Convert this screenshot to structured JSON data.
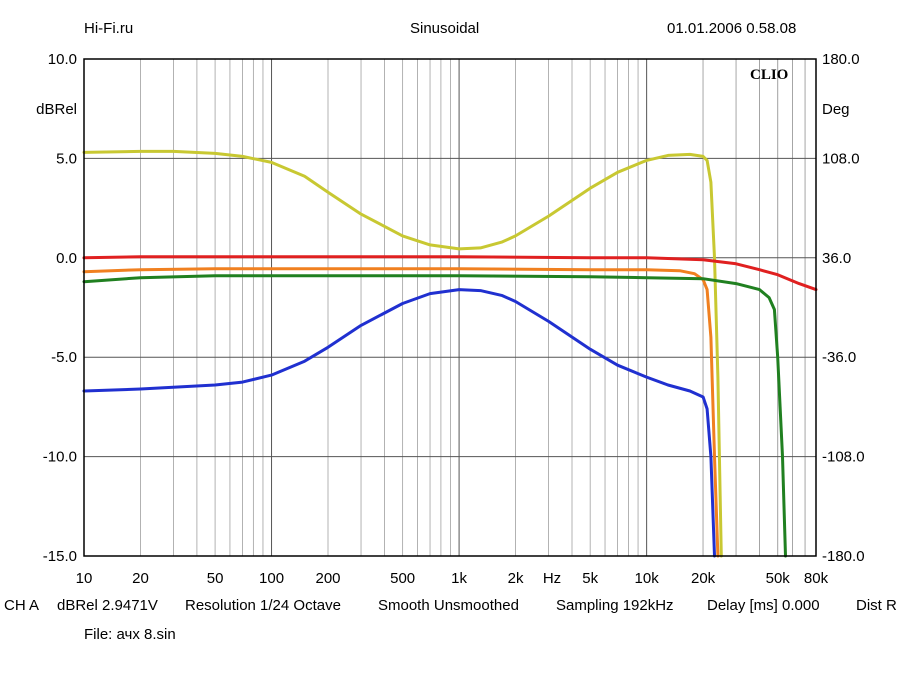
{
  "header": {
    "left": "Hi-Fi.ru",
    "center": "Sinusoidal",
    "right": "01.01.2006 0.58.08"
  },
  "status_bar": {
    "items": [
      "CH A",
      "dBRel 2.9471V",
      "Resolution 1/24 Octave",
      "Smooth Unsmoothed",
      "Sampling 192kHz",
      "Delay [ms] 0.000",
      "Dist R"
    ]
  },
  "file_label": "File: ачх 8.sin",
  "chart_data": {
    "type": "line",
    "logo": "CLIO",
    "xscale": "log",
    "xlim": [
      10,
      80000
    ],
    "ylim": [
      -15,
      10
    ],
    "y2lim": [
      -180,
      180
    ],
    "ylabel": "dBRel",
    "y2label": "Deg",
    "xunit": "Hz",
    "grid": true,
    "x_ticks": [
      {
        "v": 10,
        "label": "10"
      },
      {
        "v": 20,
        "label": "20"
      },
      {
        "v": 50,
        "label": "50"
      },
      {
        "v": 100,
        "label": "100"
      },
      {
        "v": 200,
        "label": "200"
      },
      {
        "v": 500,
        "label": "500"
      },
      {
        "v": 1000,
        "label": "1k"
      },
      {
        "v": 2000,
        "label": "2k"
      },
      {
        "v": 5000,
        "label": "5k"
      },
      {
        "v": 10000,
        "label": "10k"
      },
      {
        "v": 20000,
        "label": "20k"
      },
      {
        "v": 50000,
        "label": "50k"
      },
      {
        "v": 80000,
        "label": "80k"
      }
    ],
    "y_ticks": [
      {
        "v": 10,
        "label": "10.0"
      },
      {
        "v": 5,
        "label": "5.0"
      },
      {
        "v": 0,
        "label": "0.0"
      },
      {
        "v": -5,
        "label": "-5.0"
      },
      {
        "v": -10,
        "label": "-10.0"
      },
      {
        "v": -15,
        "label": "-15.0"
      }
    ],
    "y2_ticks": [
      {
        "v": 180,
        "label": "180.0"
      },
      {
        "v": 108,
        "label": "108.0"
      },
      {
        "v": 36,
        "label": "36.0"
      },
      {
        "v": -36,
        "label": "-36.0"
      },
      {
        "v": -108,
        "label": "-108.0"
      },
      {
        "v": -180,
        "label": "-180.0"
      }
    ],
    "series": [
      {
        "color": "#c8c832",
        "points": [
          [
            10,
            5.3
          ],
          [
            20,
            5.35
          ],
          [
            30,
            5.35
          ],
          [
            50,
            5.25
          ],
          [
            70,
            5.1
          ],
          [
            100,
            4.8
          ],
          [
            150,
            4.1
          ],
          [
            200,
            3.3
          ],
          [
            300,
            2.2
          ],
          [
            500,
            1.1
          ],
          [
            700,
            0.65
          ],
          [
            1000,
            0.45
          ],
          [
            1300,
            0.5
          ],
          [
            1700,
            0.8
          ],
          [
            2000,
            1.1
          ],
          [
            3000,
            2.1
          ],
          [
            5000,
            3.5
          ],
          [
            7000,
            4.3
          ],
          [
            10000,
            4.9
          ],
          [
            13000,
            5.15
          ],
          [
            17000,
            5.2
          ],
          [
            20000,
            5.1
          ],
          [
            21000,
            4.9
          ],
          [
            22000,
            3.8
          ],
          [
            23000,
            0
          ],
          [
            24000,
            -6
          ],
          [
            25000,
            -15
          ]
        ]
      },
      {
        "color": "#e02020",
        "points": [
          [
            10,
            0.0
          ],
          [
            20,
            0.05
          ],
          [
            100,
            0.05
          ],
          [
            1000,
            0.05
          ],
          [
            5000,
            0.0
          ],
          [
            10000,
            0.0
          ],
          [
            20000,
            -0.1
          ],
          [
            30000,
            -0.3
          ],
          [
            40000,
            -0.6
          ],
          [
            50000,
            -0.85
          ],
          [
            65000,
            -1.3
          ],
          [
            80000,
            -1.6
          ]
        ]
      },
      {
        "color": "#f08020",
        "points": [
          [
            10,
            -0.7
          ],
          [
            20,
            -0.6
          ],
          [
            50,
            -0.55
          ],
          [
            100,
            -0.55
          ],
          [
            1000,
            -0.55
          ],
          [
            5000,
            -0.6
          ],
          [
            10000,
            -0.6
          ],
          [
            15000,
            -0.65
          ],
          [
            18000,
            -0.8
          ],
          [
            20000,
            -1.1
          ],
          [
            21000,
            -1.6
          ],
          [
            22000,
            -4
          ],
          [
            23000,
            -10
          ],
          [
            24000,
            -15
          ]
        ]
      },
      {
        "color": "#208020",
        "points": [
          [
            10,
            -1.2
          ],
          [
            20,
            -1.0
          ],
          [
            50,
            -0.9
          ],
          [
            100,
            -0.9
          ],
          [
            1000,
            -0.9
          ],
          [
            5000,
            -0.95
          ],
          [
            10000,
            -1.0
          ],
          [
            20000,
            -1.05
          ],
          [
            30000,
            -1.3
          ],
          [
            40000,
            -1.6
          ],
          [
            45000,
            -2.0
          ],
          [
            48000,
            -2.6
          ],
          [
            50000,
            -5
          ],
          [
            53000,
            -10
          ],
          [
            55000,
            -15
          ]
        ]
      },
      {
        "color": "#2030d0",
        "points": [
          [
            10,
            -6.7
          ],
          [
            20,
            -6.6
          ],
          [
            50,
            -6.4
          ],
          [
            70,
            -6.25
          ],
          [
            100,
            -5.9
          ],
          [
            150,
            -5.2
          ],
          [
            200,
            -4.5
          ],
          [
            300,
            -3.4
          ],
          [
            500,
            -2.3
          ],
          [
            700,
            -1.8
          ],
          [
            1000,
            -1.6
          ],
          [
            1300,
            -1.65
          ],
          [
            1700,
            -1.9
          ],
          [
            2000,
            -2.2
          ],
          [
            3000,
            -3.2
          ],
          [
            5000,
            -4.6
          ],
          [
            7000,
            -5.4
          ],
          [
            10000,
            -6.0
          ],
          [
            13000,
            -6.4
          ],
          [
            17000,
            -6.7
          ],
          [
            20000,
            -7.0
          ],
          [
            21000,
            -7.6
          ],
          [
            22000,
            -10
          ],
          [
            23000,
            -15
          ]
        ]
      }
    ]
  }
}
